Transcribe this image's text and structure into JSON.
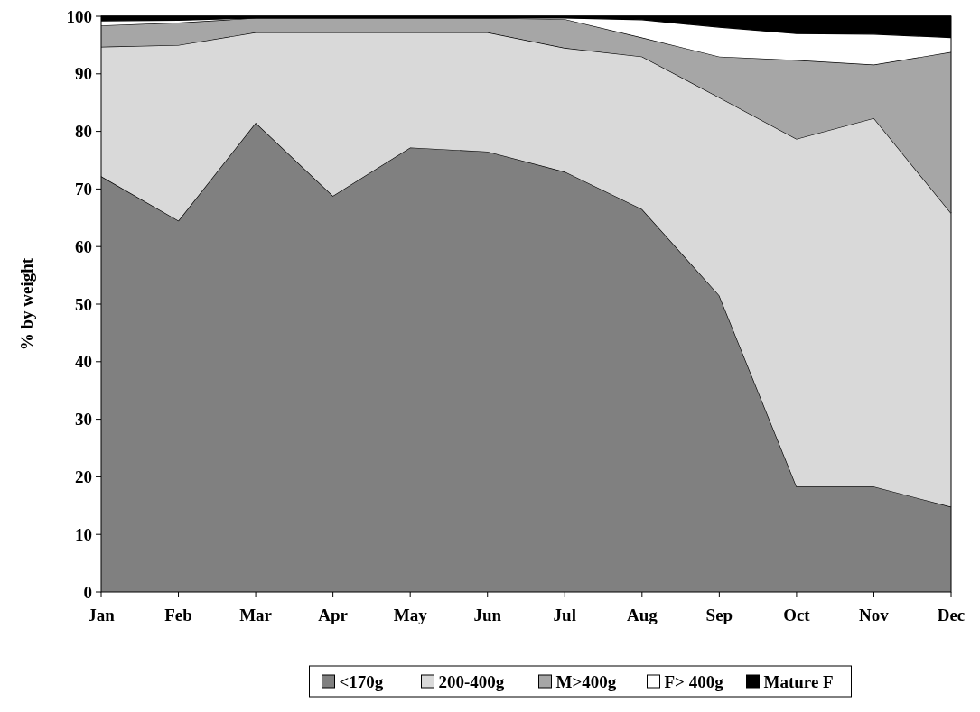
{
  "chart_data": {
    "type": "area",
    "stacked": true,
    "ylabel": "% by weight",
    "categories": [
      "Jan",
      "Feb",
      "Mar",
      "Apr",
      "May",
      "Jun",
      "Jul",
      "Aug",
      "Sep",
      "Oct",
      "Nov",
      "Dec"
    ],
    "series": [
      {
        "name": "<170g",
        "color": "#808080",
        "values": [
          72.2,
          64.5,
          81.5,
          68.8,
          77.2,
          76.5,
          73.0,
          66.5,
          51.5,
          18.3,
          18.3,
          14.8
        ]
      },
      {
        "name": "200-400g",
        "color": "#d9d9d9",
        "values": [
          22.5,
          30.5,
          15.7,
          28.4,
          20.0,
          20.7,
          21.5,
          26.5,
          34.4,
          60.4,
          64.0,
          51.0
        ]
      },
      {
        "name": "M>400g",
        "color": "#a6a6a6",
        "values": [
          3.7,
          3.9,
          2.5,
          2.5,
          2.5,
          2.5,
          5.0,
          3.3,
          7.1,
          13.7,
          9.3,
          28.0
        ]
      },
      {
        "name": "F> 400g",
        "color": "#ffffff",
        "values": [
          0.8,
          0.4,
          0,
          0,
          0,
          0,
          0.2,
          3.1,
          5.1,
          4.6,
          5.3,
          2.5
        ]
      },
      {
        "name": "Mature F",
        "color": "#000000",
        "values": [
          0.8,
          0.7,
          0.3,
          0.3,
          0.3,
          0.3,
          0.3,
          0.6,
          1.9,
          3.0,
          3.1,
          3.7
        ]
      }
    ],
    "ylim": [
      0,
      100
    ],
    "yticks": [
      0,
      10,
      20,
      30,
      40,
      50,
      60,
      70,
      80,
      90,
      100
    ],
    "legend": "bottom"
  }
}
